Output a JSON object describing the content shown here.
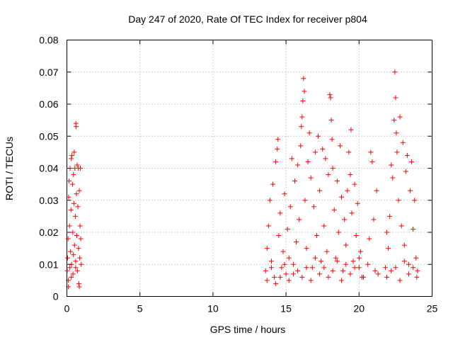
{
  "chart_data": {
    "type": "scatter",
    "title": "Day 247 of 2020, Rate Of TEC Index for receiver p804",
    "xlabel": "GPS time / hours",
    "ylabel": "ROTI / TECUs",
    "xlim": [
      0,
      25
    ],
    "ylim": [
      0,
      0.08
    ],
    "x_ticks": [
      "0",
      "5",
      "10",
      "15",
      "20",
      "25"
    ],
    "y_ticks": [
      "0",
      "0.01",
      "0.02",
      "0.03",
      "0.04",
      "0.05",
      "0.06",
      "0.07",
      "0.08"
    ],
    "grid": true,
    "marker": "plus",
    "color": "#ff0000",
    "series": [
      {
        "name": "",
        "points": [
          [
            0.02,
            0.008
          ],
          [
            0.05,
            0.012
          ],
          [
            0.08,
            0.018
          ],
          [
            0.1,
            0.005
          ],
          [
            0.12,
            0.031
          ],
          [
            0.15,
            0.036
          ],
          [
            0.18,
            0.022
          ],
          [
            0.2,
            0.009
          ],
          [
            0.22,
            0.04
          ],
          [
            0.25,
            0.014
          ],
          [
            0.28,
            0.027
          ],
          [
            0.3,
            0.043
          ],
          [
            0.32,
            0.01
          ],
          [
            0.35,
            0.044
          ],
          [
            0.38,
            0.035
          ],
          [
            0.4,
            0.02
          ],
          [
            0.42,
            0.007
          ],
          [
            0.45,
            0.038
          ],
          [
            0.48,
            0.029
          ],
          [
            0.5,
            0.045
          ],
          [
            0.52,
            0.016
          ],
          [
            0.55,
            0.04
          ],
          [
            0.58,
            0.025
          ],
          [
            0.6,
            0.011
          ],
          [
            0.62,
            0.054
          ],
          [
            0.63,
            0.053
          ],
          [
            0.65,
            0.032
          ],
          [
            0.68,
            0.019
          ],
          [
            0.7,
            0.041
          ],
          [
            0.72,
            0.008
          ],
          [
            0.75,
            0.028
          ],
          [
            0.78,
            0.04
          ],
          [
            0.8,
            0.015
          ],
          [
            0.82,
            0.004
          ],
          [
            0.85,
            0.033
          ],
          [
            0.88,
            0.012
          ],
          [
            0.9,
            0.022
          ],
          [
            0.92,
            0.04
          ],
          [
            0.95,
            0.018
          ],
          [
            0.98,
            0.01
          ],
          [
            0.1,
            0.003
          ],
          [
            0.3,
            0.006
          ],
          [
            0.6,
            0.009
          ],
          [
            0.85,
            0.003
          ],
          [
            0.45,
            0.013
          ],
          [
            13.6,
            0.008
          ],
          [
            13.7,
            0.015
          ],
          [
            13.8,
            0.022
          ],
          [
            13.9,
            0.03
          ],
          [
            14.0,
            0.011
          ],
          [
            14.1,
            0.035
          ],
          [
            14.2,
            0.006
          ],
          [
            14.3,
            0.042
          ],
          [
            14.4,
            0.046
          ],
          [
            14.45,
            0.049
          ],
          [
            14.5,
            0.019
          ],
          [
            14.6,
            0.026
          ],
          [
            14.7,
            0.009
          ],
          [
            14.8,
            0.014
          ],
          [
            14.9,
            0.032
          ],
          [
            15.0,
            0.007
          ],
          [
            15.1,
            0.021
          ],
          [
            15.2,
            0.012
          ],
          [
            15.3,
            0.028
          ],
          [
            15.4,
            0.043
          ],
          [
            15.5,
            0.01
          ],
          [
            15.6,
            0.036
          ],
          [
            15.7,
            0.017
          ],
          [
            15.8,
            0.041
          ],
          [
            15.9,
            0.024
          ],
          [
            16.0,
            0.047
          ],
          [
            16.05,
            0.053
          ],
          [
            16.1,
            0.056
          ],
          [
            16.15,
            0.061
          ],
          [
            16.2,
            0.068
          ],
          [
            16.25,
            0.064
          ],
          [
            16.3,
            0.03
          ],
          [
            16.4,
            0.015
          ],
          [
            16.5,
            0.042
          ],
          [
            16.6,
            0.051
          ],
          [
            16.7,
            0.037
          ],
          [
            16.8,
            0.009
          ],
          [
            16.9,
            0.028
          ],
          [
            17.0,
            0.045
          ],
          [
            17.1,
            0.019
          ],
          [
            17.2,
            0.05
          ],
          [
            17.3,
            0.033
          ],
          [
            17.4,
            0.011
          ],
          [
            17.5,
            0.046
          ],
          [
            17.6,
            0.022
          ],
          [
            17.7,
            0.043
          ],
          [
            17.8,
            0.014
          ],
          [
            17.9,
            0.038
          ],
          [
            18.0,
            0.063
          ],
          [
            18.05,
            0.062
          ],
          [
            18.1,
            0.055
          ],
          [
            18.15,
            0.049
          ],
          [
            18.2,
            0.04
          ],
          [
            18.3,
            0.027
          ],
          [
            18.4,
            0.012
          ],
          [
            18.5,
            0.036
          ],
          [
            18.6,
            0.02
          ],
          [
            18.7,
            0.047
          ],
          [
            18.8,
            0.031
          ],
          [
            18.9,
            0.008
          ],
          [
            19.0,
            0.024
          ],
          [
            19.1,
            0.016
          ],
          [
            19.2,
            0.033
          ],
          [
            19.3,
            0.045
          ],
          [
            19.4,
            0.038
          ],
          [
            19.45,
            0.052
          ],
          [
            19.5,
            0.026
          ],
          [
            19.6,
            0.011
          ],
          [
            19.7,
            0.035
          ],
          [
            19.8,
            0.019
          ],
          [
            19.9,
            0.029
          ],
          [
            20.0,
            0.009
          ],
          [
            20.1,
            0.014
          ],
          [
            20.2,
            0.006
          ],
          [
            20.6,
            0.01
          ],
          [
            20.7,
            0.018
          ],
          [
            20.8,
            0.045
          ],
          [
            20.9,
            0.042
          ],
          [
            21.0,
            0.024
          ],
          [
            21.1,
            0.008
          ],
          [
            21.2,
            0.033
          ],
          [
            21.3,
            0.007
          ],
          [
            21.8,
            0.009
          ],
          [
            21.9,
            0.02
          ],
          [
            22.0,
            0.015
          ],
          [
            22.1,
            0.025
          ],
          [
            22.2,
            0.041
          ],
          [
            22.3,
            0.037
          ],
          [
            22.4,
            0.055
          ],
          [
            22.45,
            0.07
          ],
          [
            22.5,
            0.062
          ],
          [
            22.55,
            0.051
          ],
          [
            22.6,
            0.045
          ],
          [
            22.7,
            0.03
          ],
          [
            22.8,
            0.056
          ],
          [
            22.9,
            0.022
          ],
          [
            23.0,
            0.048
          ],
          [
            23.1,
            0.016
          ],
          [
            23.2,
            0.039
          ],
          [
            23.3,
            0.044
          ],
          [
            23.4,
            0.01
          ],
          [
            23.5,
            0.033
          ],
          [
            23.6,
            0.042
          ],
          [
            23.7,
            0.021
          ],
          [
            23.8,
            0.03
          ],
          [
            23.9,
            0.012
          ],
          [
            24.0,
            0.008
          ],
          [
            13.7,
            0.005
          ],
          [
            14.0,
            0.009
          ],
          [
            14.3,
            0.004
          ],
          [
            14.6,
            0.006
          ],
          [
            14.9,
            0.01
          ],
          [
            15.2,
            0.005
          ],
          [
            15.5,
            0.007
          ],
          [
            15.8,
            0.008
          ],
          [
            16.1,
            0.006
          ],
          [
            16.4,
            0.009
          ],
          [
            16.7,
            0.005
          ],
          [
            17.0,
            0.012
          ],
          [
            17.3,
            0.007
          ],
          [
            17.6,
            0.009
          ],
          [
            17.9,
            0.006
          ],
          [
            18.2,
            0.008
          ],
          [
            18.5,
            0.011
          ],
          [
            18.8,
            0.005
          ],
          [
            19.1,
            0.01
          ],
          [
            19.4,
            0.007
          ],
          [
            19.7,
            0.009
          ],
          [
            20.0,
            0.012
          ],
          [
            20.3,
            0.006
          ],
          [
            21.9,
            0.006
          ],
          [
            22.2,
            0.008
          ],
          [
            22.5,
            0.009
          ],
          [
            22.8,
            0.005
          ],
          [
            23.1,
            0.011
          ],
          [
            23.4,
            0.007
          ],
          [
            23.7,
            0.009
          ],
          [
            23.95,
            0.006
          ]
        ]
      }
    ]
  }
}
